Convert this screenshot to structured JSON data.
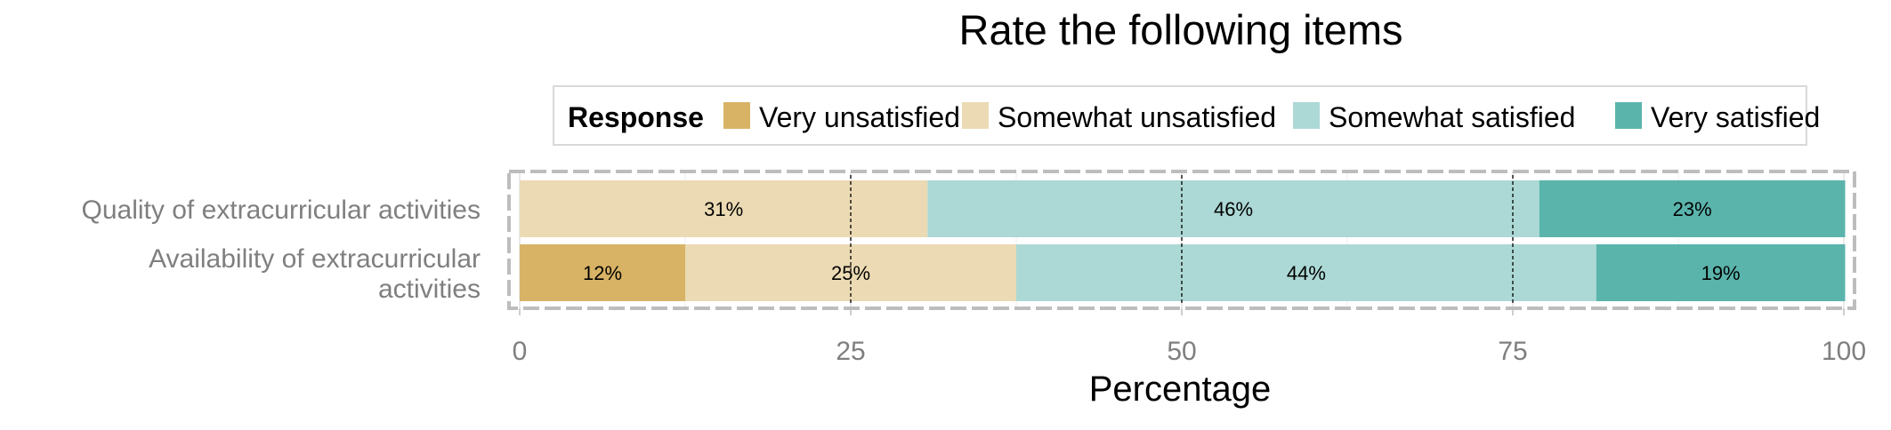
{
  "chart_data": {
    "type": "bar",
    "orientation": "horizontal",
    "stacked": true,
    "title": "Rate the following items",
    "xlabel": "Percentage",
    "ylabel": "",
    "xlim": [
      0,
      100
    ],
    "xticks": [
      0,
      25,
      50,
      75,
      100
    ],
    "legend": {
      "title": "Response",
      "placement": "top"
    },
    "categories": [
      [
        "Quality of extracurricular activities"
      ],
      [
        "Availability of extracurricular",
        "activities"
      ]
    ],
    "series": [
      {
        "name": "Very unsatisfied",
        "color": "#D8B365",
        "values": [
          0,
          12.5
        ],
        "labels": [
          "",
          "12%"
        ]
      },
      {
        "name": "Somewhat unsatisfied",
        "color": "#EBDAB3",
        "values": [
          30.8,
          25
        ],
        "labels": [
          "31%",
          "25%"
        ]
      },
      {
        "name": "Somewhat satisfied",
        "color": "#ACD9D5",
        "values": [
          46.2,
          43.8
        ],
        "labels": [
          "46%",
          "44%"
        ]
      },
      {
        "name": "Very satisfied",
        "color": "#5AB4AC",
        "values": [
          23.1,
          18.8
        ],
        "labels": [
          "23%",
          "19%"
        ]
      }
    ],
    "grid": true,
    "reference_lines": [
      25,
      50,
      75
    ]
  }
}
